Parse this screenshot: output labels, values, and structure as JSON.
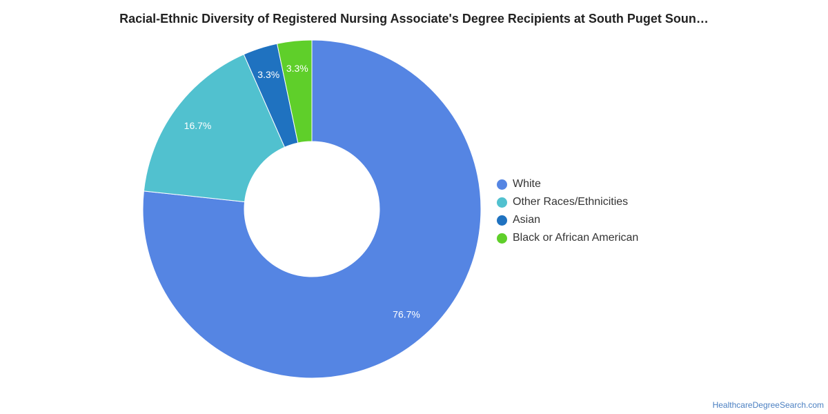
{
  "chart_data": {
    "type": "pie",
    "title": "Racial-Ethnic Diversity of Registered Nursing Associate's Degree Recipients at South Puget Soun…",
    "donut": true,
    "legend_position": "right",
    "slices": [
      {
        "name": "White",
        "value": 76.7,
        "label": "76.7%",
        "color": "#5585e3"
      },
      {
        "name": "Other Races/Ethnicities",
        "value": 16.7,
        "label": "16.7%",
        "color": "#51c1cf"
      },
      {
        "name": "Asian",
        "value": 3.3,
        "label": "3.3%",
        "color": "#1f72c0"
      },
      {
        "name": "Black or African American",
        "value": 3.3,
        "label": "3.3%",
        "color": "#5fcf2a"
      }
    ]
  },
  "source": "HealthcareDegreeSearch.com"
}
